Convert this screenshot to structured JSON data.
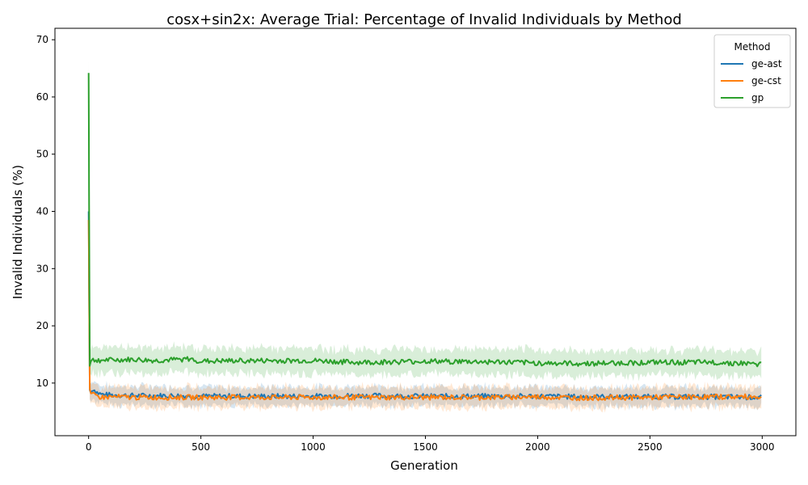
{
  "chart_data": {
    "type": "line",
    "title": "cosx+sin2x: Average Trial: Percentage of Invalid Individuals by Method",
    "xlabel": "Generation",
    "ylabel": "Invalid Individuals (%)",
    "xlim": [
      -150,
      3150
    ],
    "ylim": [
      0.8,
      72
    ],
    "xticks": [
      0,
      500,
      1000,
      1500,
      2000,
      2500,
      3000
    ],
    "yticks": [
      10,
      20,
      30,
      40,
      50,
      60,
      70
    ],
    "grid": false,
    "legend": {
      "title": "Method",
      "placement": "top-right"
    },
    "series": [
      {
        "name": "ge-ast",
        "color": "#1f77b4",
        "points": [
          [
            0,
            40.0
          ],
          [
            5,
            8.8
          ],
          [
            10,
            8.3
          ],
          [
            20,
            9.0
          ],
          [
            40,
            8.3
          ],
          [
            60,
            8.0
          ],
          [
            100,
            7.9
          ],
          [
            200,
            7.8
          ],
          [
            400,
            7.8
          ],
          [
            500,
            7.7
          ],
          [
            700,
            7.7
          ],
          [
            1000,
            7.7
          ],
          [
            1200,
            7.8
          ],
          [
            1500,
            7.7
          ],
          [
            1800,
            7.7
          ],
          [
            2000,
            7.7
          ],
          [
            2200,
            7.6
          ],
          [
            2500,
            7.6
          ],
          [
            2800,
            7.6
          ],
          [
            3000,
            7.5
          ]
        ],
        "band": 1.6
      },
      {
        "name": "ge-cst",
        "color": "#ff7f0e",
        "points": [
          [
            0,
            38.5
          ],
          [
            5,
            9.0
          ],
          [
            10,
            8.2
          ],
          [
            20,
            7.9
          ],
          [
            40,
            7.7
          ],
          [
            60,
            7.5
          ],
          [
            100,
            7.6
          ],
          [
            200,
            7.5
          ],
          [
            400,
            7.5
          ],
          [
            500,
            7.5
          ],
          [
            700,
            7.5
          ],
          [
            1000,
            7.5
          ],
          [
            1200,
            7.5
          ],
          [
            1500,
            7.5
          ],
          [
            1800,
            7.5
          ],
          [
            2000,
            7.6
          ],
          [
            2200,
            7.4
          ],
          [
            2500,
            7.5
          ],
          [
            2800,
            7.6
          ],
          [
            3000,
            7.6
          ]
        ],
        "band": 1.8
      },
      {
        "name": "gp",
        "color": "#2ca02c",
        "points": [
          [
            0,
            64.2
          ],
          [
            5,
            13.0
          ],
          [
            10,
            13.8
          ],
          [
            20,
            14.0
          ],
          [
            100,
            14.0
          ],
          [
            200,
            14.1
          ],
          [
            300,
            13.9
          ],
          [
            450,
            14.2
          ],
          [
            500,
            13.8
          ],
          [
            700,
            13.9
          ],
          [
            1000,
            13.9
          ],
          [
            1200,
            13.6
          ],
          [
            1500,
            13.8
          ],
          [
            1800,
            13.7
          ],
          [
            2000,
            13.5
          ],
          [
            2200,
            13.4
          ],
          [
            2500,
            13.6
          ],
          [
            2800,
            13.6
          ],
          [
            3000,
            13.3
          ]
        ],
        "band": 2.2
      }
    ]
  }
}
